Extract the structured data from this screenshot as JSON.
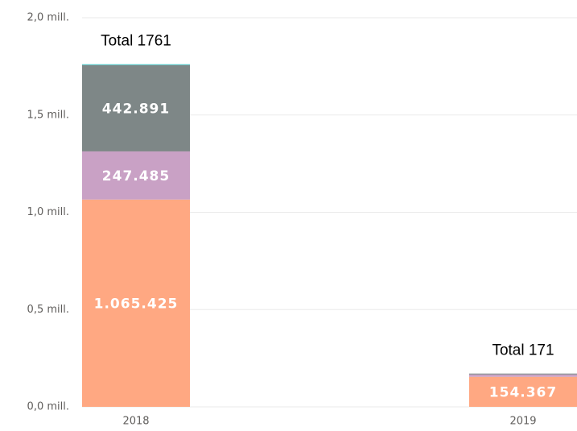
{
  "chart_data": {
    "type": "stacked_bar",
    "categories": [
      "2018",
      "2019"
    ],
    "series": [
      {
        "color": "#FFA882",
        "values": [
          1065425,
          154367
        ],
        "value_labels": [
          "1.065.425",
          "154.367"
        ]
      },
      {
        "color": "#C9A1C5",
        "values": [
          247485,
          12000
        ],
        "value_labels": [
          "247.485",
          null
        ]
      },
      {
        "color": "#7E8787",
        "values": [
          442891,
          4633
        ],
        "value_labels": [
          "442.891",
          null
        ]
      },
      {
        "color": "#5EC6C6",
        "values": [
          5199,
          null
        ],
        "value_labels": [
          null,
          null
        ]
      }
    ],
    "annotations": [
      "Total 1761",
      "Total 171"
    ],
    "ylim": [
      0,
      2000000
    ],
    "yticks": [
      {
        "value": 0,
        "label": "0,0 mill."
      },
      {
        "value": 500000,
        "label": "0,5 mill."
      },
      {
        "value": 1000000,
        "label": "1,0 mill."
      },
      {
        "value": 1500000,
        "label": "1,5 mill."
      },
      {
        "value": 2000000,
        "label": "2,0 mill."
      }
    ],
    "grid": true
  }
}
